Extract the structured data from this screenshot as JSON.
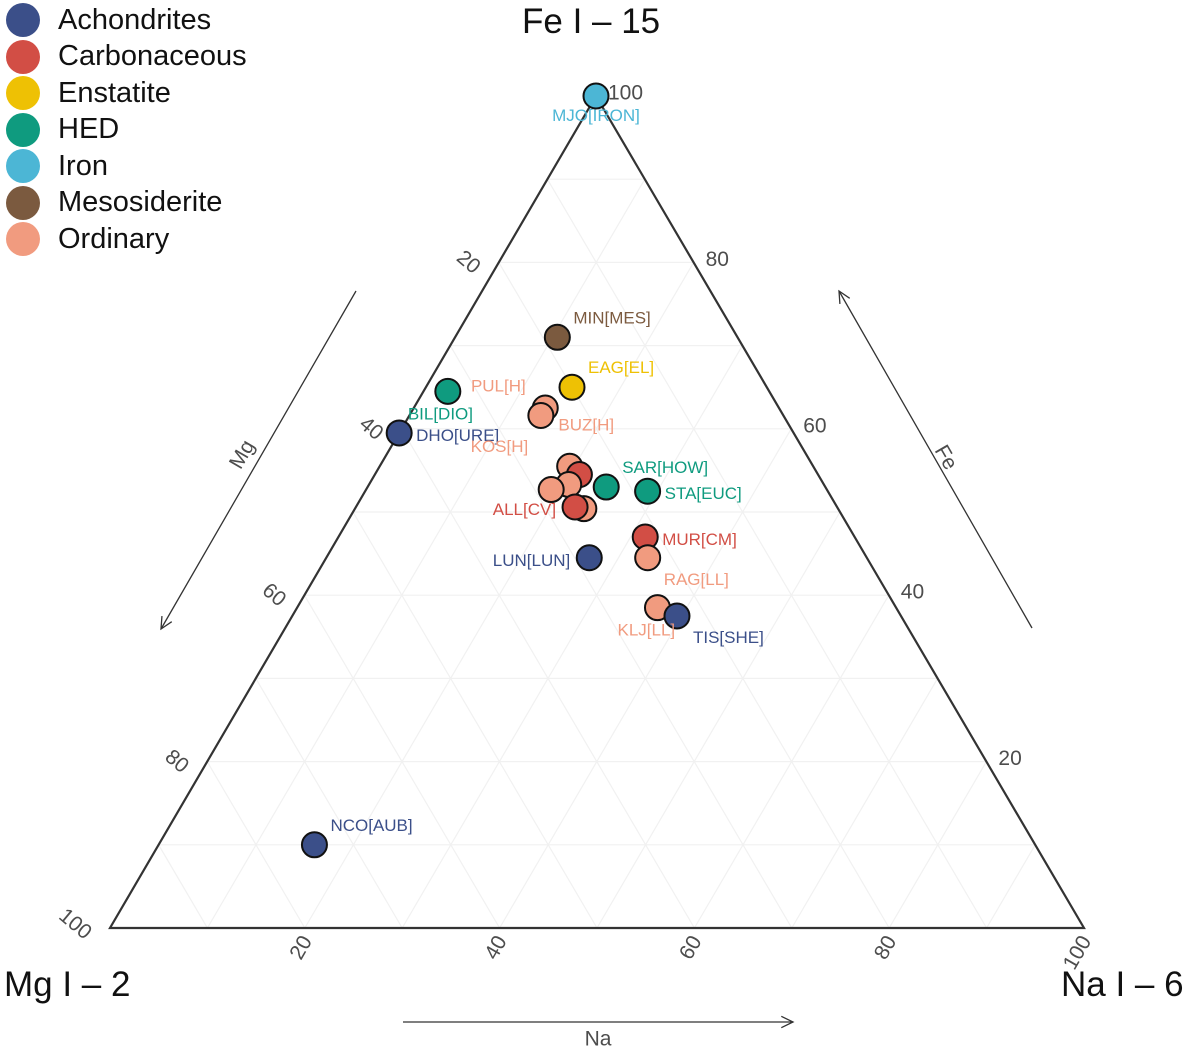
{
  "chart_data": {
    "type": "ternary-scatter",
    "vertices": {
      "top": "Fe I – 15",
      "left": "Mg I – 2",
      "right": "Na I – 6"
    },
    "axis_arrows": {
      "left": "Mg",
      "right": "Fe",
      "bottom": "Na"
    },
    "ticks": {
      "fe": [
        "20",
        "40",
        "60",
        "80",
        "100"
      ],
      "mg": [
        "20",
        "40",
        "60",
        "80",
        "100"
      ],
      "na": [
        "20",
        "40",
        "60",
        "80",
        "100"
      ]
    },
    "ylim": [
      0,
      100
    ],
    "grid": true,
    "legend_position": "top-left",
    "legend": [
      {
        "name": "Achondrites",
        "color": "#3b4f89"
      },
      {
        "name": "Carbonaceous",
        "color": "#d24e45"
      },
      {
        "name": "Enstatite",
        "color": "#eec104"
      },
      {
        "name": "HED",
        "color": "#0f9b7f"
      },
      {
        "name": "Iron",
        "color": "#4cb6d5"
      },
      {
        "name": "Mesosiderite",
        "color": "#7b5a3f"
      },
      {
        "name": "Ordinary",
        "color": "#f19b7f"
      }
    ],
    "points": [
      {
        "fe": 100,
        "na": 0,
        "mg": 0,
        "group": "Iron",
        "label": "MJO[IRON]",
        "label_pos": "below"
      },
      {
        "fe": 71,
        "na": 10.5,
        "mg": 18.5,
        "group": "Mesosiderite",
        "label": "MIN[MES]",
        "label_pos": "upper-right"
      },
      {
        "fe": 65,
        "na": 15,
        "mg": 20,
        "group": "Enstatite",
        "label": "EAG[EL]",
        "label_pos": "upper-right"
      },
      {
        "fe": 62.5,
        "na": 13.5,
        "mg": 24
      },
      {
        "fe": 61.6,
        "na": 13.5,
        "mg": 24.9
      },
      {
        "fe": 64.5,
        "na": 2.5,
        "mg": 33,
        "group": "HED",
        "label": "BIL[DIO]",
        "label_pos": "below-left"
      },
      {
        "fe": 59.5,
        "na": 0,
        "mg": 40.5,
        "group": "Achondrites",
        "label": "DHO[URE]",
        "label_pos": "right"
      },
      {
        "fe": 55.5,
        "na": 19.5,
        "mg": 25,
        "group": "Ordinary"
      },
      {
        "fe": 54.5,
        "na": 21,
        "mg": 24.5,
        "group": "Carbonaceous"
      },
      {
        "fe": 53.3,
        "na": 20.5,
        "mg": 26.2
      },
      {
        "fe": 52.7,
        "na": 19,
        "mg": 28.3
      },
      {
        "fe": 53,
        "na": 24.5,
        "mg": 22.5,
        "group": "HED",
        "label": "SAR[HOW]",
        "label_pos": "upper-right"
      },
      {
        "fe": 52.5,
        "na": 29,
        "mg": 18.5,
        "group": "HED",
        "label": "STA[EUC]",
        "label_pos": "right"
      },
      {
        "fe": 50.4,
        "na": 23.5,
        "mg": 26.1
      },
      {
        "fe": 50.6,
        "na": 22.5,
        "mg": 26.9,
        "group": "Carbonaceous",
        "label": "ALL[CV]",
        "label_pos": "left"
      },
      {
        "fe": 47,
        "na": 31.5,
        "mg": 21.5,
        "group": "Carbonaceous",
        "label": "MUR[CM]",
        "label_pos": "right"
      },
      {
        "fe": 44.5,
        "na": 33,
        "mg": 22.5,
        "group": "Ordinary",
        "label": "RAG[LL]",
        "label_pos": "below-right"
      },
      {
        "fe": 44.5,
        "na": 27,
        "mg": 28.5,
        "group": "Achondrites",
        "label": "LUN[LUN]",
        "label_pos": "left"
      },
      {
        "fe": 38.5,
        "na": 37,
        "mg": 24.5,
        "group": "Ordinary",
        "label": "KLJ[LL]",
        "label_pos": "below-left"
      },
      {
        "fe": 37.5,
        "na": 39.5,
        "mg": 23,
        "group": "Achondrites",
        "label": "TIS[SHE]",
        "label_pos": "below-right"
      },
      {
        "fe": 10,
        "na": 16,
        "mg": 74,
        "group": "Achondrites",
        "label": "NCO[AUB]",
        "label_pos": "upper-right"
      }
    ],
    "text_labels": [
      {
        "text": "PUL[H]",
        "group": "Ordinary",
        "fe": 64.5,
        "na": 10.5,
        "mg": 25,
        "anchor": "end"
      },
      {
        "text": "BUZ[H]",
        "group": "Ordinary",
        "fe": 59.8,
        "na": 16.2,
        "mg": 24,
        "anchor": "start"
      },
      {
        "text": "KOS[H]",
        "group": "Ordinary",
        "fe": 57.2,
        "na": 14.4,
        "mg": 28.4,
        "anchor": "end"
      }
    ]
  }
}
